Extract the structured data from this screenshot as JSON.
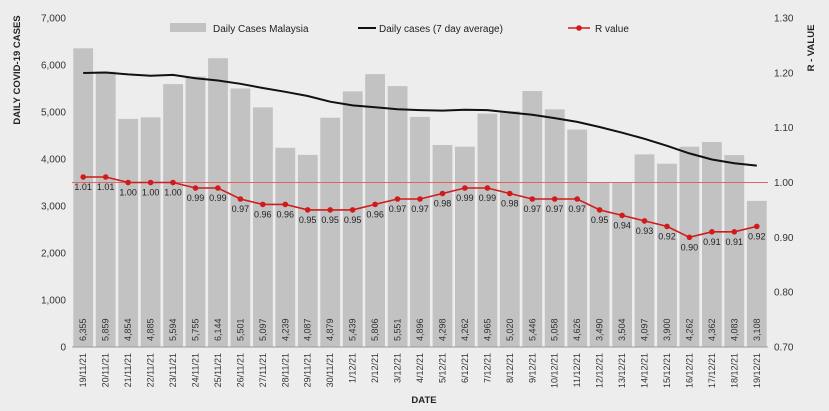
{
  "chart_data": {
    "type": "bar",
    "xlabel": "DATE",
    "ylabel": "DAILY COVID-19 CASES",
    "y2label": "R - VALUE",
    "ylim": [
      0,
      7000
    ],
    "y2lim": [
      0.7,
      1.3
    ],
    "y_ticks": [
      "0",
      "1,000",
      "2,000",
      "3,000",
      "4,000",
      "5,000",
      "6,000",
      "7,000"
    ],
    "y2_ticks": [
      "0.70",
      "0.80",
      "0.90",
      "1.00",
      "1.10",
      "1.20",
      "1.30"
    ],
    "reference_line_y2": 1.0,
    "categories": [
      "19/11/21",
      "20/11/21",
      "21/11/21",
      "22/11/21",
      "23/11/21",
      "24/11/21",
      "25/11/21",
      "26/11/21",
      "27/11/21",
      "28/11/21",
      "29/11/21",
      "30/11/21",
      "1/12/21",
      "2/12/21",
      "3/12/21",
      "4/12/21",
      "5/12/21",
      "6/12/21",
      "7/12/21",
      "8/12/21",
      "9/12/21",
      "10/12/21",
      "11/12/21",
      "12/12/21",
      "13/12/21",
      "14/12/21",
      "15/12/21",
      "16/12/21",
      "17/12/21",
      "18/12/21",
      "19/12/21"
    ],
    "bar_labels": [
      "6,355",
      "5,859",
      "4,854",
      "4,885",
      "5,594",
      "5,755",
      "6,144",
      "5,501",
      "5,097",
      "4,239",
      "4,087",
      "4,879",
      "5,439",
      "5,806",
      "5,551",
      "4,896",
      "4,298",
      "4,262",
      "4,965",
      "5,020",
      "5,446",
      "5,058",
      "4,626",
      "3,490",
      "3,504",
      "4,097",
      "3,900",
      "4,262",
      "4,362",
      "4,083",
      "3,108"
    ],
    "r_labels": [
      "1.01",
      "1.01",
      "1.00",
      "1.00",
      "1.00",
      "0.99",
      "0.99",
      "0.97",
      "0.96",
      "0.96",
      "0.95",
      "0.95",
      "0.95",
      "0.96",
      "0.97",
      "0.97",
      "0.98",
      "0.99",
      "0.99",
      "0.98",
      "0.97",
      "0.97",
      "0.97",
      "0.95",
      "0.94",
      "0.93",
      "0.92",
      "0.90",
      "0.91",
      "0.91",
      "0.92"
    ],
    "series": [
      {
        "name": "Daily Cases Malaysia",
        "type": "bar",
        "axis": "left",
        "values": [
          6355,
          5859,
          4854,
          4885,
          5594,
          5755,
          6144,
          5501,
          5097,
          4239,
          4087,
          4879,
          5439,
          5806,
          5551,
          4896,
          4298,
          4262,
          4965,
          5020,
          5446,
          5058,
          4626,
          3490,
          3504,
          4097,
          3900,
          4262,
          4362,
          4083,
          3108
        ]
      },
      {
        "name": "Daily cases (7 day average)",
        "type": "line",
        "axis": "left",
        "values": [
          5830,
          5840,
          5800,
          5770,
          5790,
          5720,
          5670,
          5600,
          5510,
          5430,
          5340,
          5220,
          5140,
          5100,
          5060,
          5040,
          5030,
          5050,
          5040,
          4990,
          4940,
          4870,
          4790,
          4680,
          4560,
          4430,
          4280,
          4120,
          3990,
          3910,
          3860
        ]
      },
      {
        "name": "R value",
        "type": "line",
        "axis": "right",
        "values": [
          1.01,
          1.01,
          1.0,
          1.0,
          1.0,
          0.99,
          0.99,
          0.97,
          0.96,
          0.96,
          0.95,
          0.95,
          0.95,
          0.96,
          0.97,
          0.97,
          0.98,
          0.99,
          0.99,
          0.98,
          0.97,
          0.97,
          0.97,
          0.95,
          0.94,
          0.93,
          0.92,
          0.9,
          0.91,
          0.91,
          0.92
        ]
      }
    ],
    "colors": {
      "bars": "#c2c2c2",
      "bar_label": "#333333",
      "avg_line": "#111111",
      "r_line": "#d11b1b",
      "reference_line": "#e06666",
      "background": "#ededed"
    },
    "legend_placement": "top",
    "grid": false
  }
}
